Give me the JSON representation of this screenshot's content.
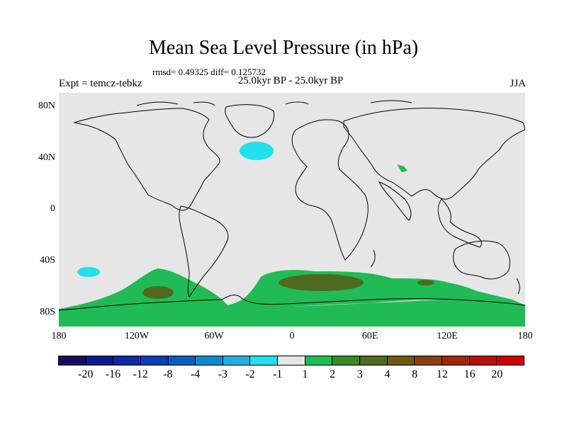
{
  "title": "Mean Sea Level Pressure (in hPa)",
  "stats": "rmsd= 0.49325 diff= 0.125732",
  "experiment": "Expt = temcz-tebkz",
  "period": "25.0kyr BP - 25.0kyr BP",
  "season": "JJA",
  "lat_labels": [
    "80N",
    "40N",
    "0",
    "40S",
    "80S"
  ],
  "lon_labels": [
    "180",
    "120W",
    "60W",
    "0",
    "60E",
    "120E",
    "180"
  ],
  "colorbar": {
    "labels": [
      "-20",
      "-16",
      "-12",
      "-8",
      "-4",
      "-3",
      "-2",
      "-1",
      "1",
      "2",
      "3",
      "4",
      "8",
      "12",
      "16",
      "20"
    ],
    "colors": [
      "#1a0a66",
      "#0c1a8c",
      "#0a2aa8",
      "#0a3db8",
      "#0b5cc4",
      "#1286d1",
      "#1fb0e0",
      "#22e0ee",
      "#e6e6e6",
      "#20bb55",
      "#3a8a26",
      "#4f6a1f",
      "#6b5a12",
      "#8a3c0e",
      "#a1260a",
      "#b80e08",
      "#cc0000"
    ]
  },
  "map": {
    "background": "#e6e6e6",
    "anomalies": [
      {
        "name": "north-atlantic-low",
        "value_range": "-2 to -1",
        "color": "#22e0ee"
      },
      {
        "name": "south-pacific-low",
        "value_range": "-2 to -1",
        "color": "#22e0ee"
      },
      {
        "name": "southern-ocean-high",
        "value_range": "1 to 2",
        "color": "#20bb55"
      },
      {
        "name": "southern-ocean-high-core",
        "value_range": "3 to 4",
        "color": "#4f6a1f"
      },
      {
        "name": "central-asia-high",
        "value_range": "1 to 2",
        "color": "#20bb55"
      }
    ]
  }
}
